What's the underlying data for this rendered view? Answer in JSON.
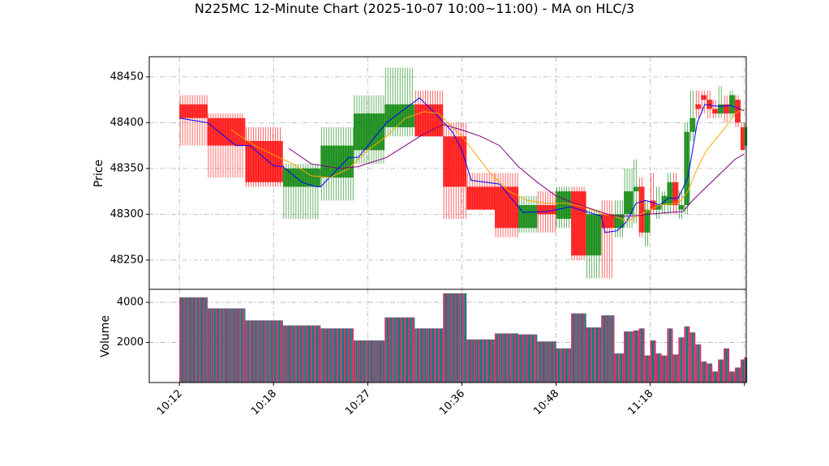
{
  "chart_data": {
    "title": "N225MC 12-Minute Chart (2025-10-07 10:00~11:00) - MA on HLC/3",
    "type": "candlestick",
    "price_panel": {
      "ylabel": "Price",
      "ylim": [
        48218,
        48472
      ],
      "yticks": [
        48250,
        48300,
        48350,
        48400,
        48450
      ],
      "grid": true
    },
    "volume_panel": {
      "ylabel": "Volume",
      "ylim": [
        0,
        4650
      ],
      "yticks": [
        2000,
        4000
      ],
      "grid": true
    },
    "xlim": [
      -3.2,
      60.2
    ],
    "xticks": [
      {
        "pos": 0,
        "label": "10:12"
      },
      {
        "pos": 10,
        "label": "10:18"
      },
      {
        "pos": 20,
        "label": "10:27"
      },
      {
        "pos": 30,
        "label": "10:36"
      },
      {
        "pos": 40,
        "label": "10:48"
      },
      {
        "pos": 50,
        "label": "11:18"
      },
      {
        "pos": 60,
        "label": ""
      }
    ],
    "colors": {
      "up": "#008000",
      "down": "#ff0000",
      "ma_fast": "#0000ff",
      "ma_mid": "#ffa500",
      "ma_slow": "#800080",
      "vol_up": "#008080",
      "vol_down": "#cc3366"
    },
    "candles": [
      {
        "x": 0,
        "w": 3,
        "open": 48420,
        "high": 48430,
        "low": 48375,
        "close": 48405,
        "volume": 4250
      },
      {
        "x": 3,
        "w": 4,
        "open": 48405,
        "high": 48410,
        "low": 48340,
        "close": 48375,
        "volume": 3700
      },
      {
        "x": 7,
        "w": 4,
        "open": 48380,
        "high": 48395,
        "low": 48330,
        "close": 48335,
        "volume": 3100
      },
      {
        "x": 11,
        "w": 4,
        "open": 48330,
        "high": 48355,
        "low": 48295,
        "close": 48350,
        "volume": 2850
      },
      {
        "x": 15,
        "w": 3.5,
        "open": 48340,
        "high": 48395,
        "low": 48315,
        "close": 48375,
        "volume": 2700
      },
      {
        "x": 18.5,
        "w": 3.3,
        "open": 48370,
        "high": 48430,
        "low": 48355,
        "close": 48410,
        "volume": 2100
      },
      {
        "x": 21.8,
        "w": 3.2,
        "open": 48395,
        "high": 48460,
        "low": 48385,
        "close": 48420,
        "volume": 3250
      },
      {
        "x": 25,
        "w": 3,
        "open": 48420,
        "high": 48435,
        "low": 48385,
        "close": 48385,
        "volume": 2700
      },
      {
        "x": 28,
        "w": 2.5,
        "open": 48385,
        "high": 48400,
        "low": 48295,
        "close": 48330,
        "volume": 4450
      },
      {
        "x": 30.5,
        "w": 3,
        "open": 48330,
        "high": 48345,
        "low": 48305,
        "close": 48305,
        "volume": 2150
      },
      {
        "x": 33.5,
        "w": 2.5,
        "open": 48330,
        "high": 48345,
        "low": 48275,
        "close": 48285,
        "volume": 2450
      },
      {
        "x": 36,
        "w": 2,
        "open": 48285,
        "high": 48320,
        "low": 48280,
        "close": 48310,
        "volume": 2400
      },
      {
        "x": 38,
        "w": 2,
        "open": 48310,
        "high": 48325,
        "low": 48280,
        "close": 48300,
        "volume": 2050
      },
      {
        "x": 40,
        "w": 1.6,
        "open": 48295,
        "high": 48330,
        "low": 48285,
        "close": 48325,
        "volume": 1700
      },
      {
        "x": 41.6,
        "w": 1.6,
        "open": 48325,
        "high": 48330,
        "low": 48250,
        "close": 48255,
        "volume": 3450
      },
      {
        "x": 43.2,
        "w": 1.6,
        "open": 48255,
        "high": 48305,
        "low": 48230,
        "close": 48300,
        "volume": 2750
      },
      {
        "x": 44.8,
        "w": 1.4,
        "open": 48300,
        "high": 48315,
        "low": 48230,
        "close": 48285,
        "volume": 3350
      },
      {
        "x": 46.2,
        "w": 1.0,
        "open": 48285,
        "high": 48315,
        "low": 48275,
        "close": 48300,
        "volume": 1450
      },
      {
        "x": 47.2,
        "w": 1.0,
        "open": 48300,
        "high": 48350,
        "low": 48285,
        "close": 48325,
        "volume": 2550
      },
      {
        "x": 48.2,
        "w": 0.6,
        "open": 48325,
        "high": 48360,
        "low": 48290,
        "close": 48330,
        "volume": 2600
      },
      {
        "x": 48.8,
        "w": 0.6,
        "open": 48330,
        "high": 48340,
        "low": 48275,
        "close": 48280,
        "volume": 2700
      },
      {
        "x": 49.4,
        "w": 0.6,
        "open": 48280,
        "high": 48315,
        "low": 48265,
        "close": 48305,
        "volume": 1350
      },
      {
        "x": 50.0,
        "w": 0.6,
        "open": 48315,
        "high": 48345,
        "low": 48300,
        "close": 48305,
        "volume": 2100
      },
      {
        "x": 50.6,
        "w": 0.6,
        "open": 48305,
        "high": 48330,
        "low": 48295,
        "close": 48310,
        "volume": 1450
      },
      {
        "x": 51.2,
        "w": 0.6,
        "open": 48310,
        "high": 48325,
        "low": 48300,
        "close": 48320,
        "volume": 1350
      },
      {
        "x": 51.8,
        "w": 0.6,
        "open": 48310,
        "high": 48345,
        "low": 48300,
        "close": 48335,
        "volume": 2700
      },
      {
        "x": 52.4,
        "w": 0.6,
        "open": 48335,
        "high": 48345,
        "low": 48300,
        "close": 48310,
        "volume": 1400
      },
      {
        "x": 53.0,
        "w": 0.6,
        "open": 48305,
        "high": 48325,
        "low": 48295,
        "close": 48310,
        "volume": 2250
      },
      {
        "x": 53.6,
        "w": 0.6,
        "open": 48310,
        "high": 48400,
        "low": 48300,
        "close": 48390,
        "volume": 2800
      },
      {
        "x": 54.2,
        "w": 0.6,
        "open": 48390,
        "high": 48435,
        "low": 48380,
        "close": 48405,
        "volume": 2500
      },
      {
        "x": 54.8,
        "w": 0.6,
        "open": 48420,
        "high": 48435,
        "low": 48405,
        "close": 48415,
        "volume": 1900
      },
      {
        "x": 55.4,
        "w": 0.6,
        "open": 48430,
        "high": 48435,
        "low": 48410,
        "close": 48425,
        "volume": 1050
      },
      {
        "x": 56.0,
        "w": 0.6,
        "open": 48425,
        "high": 48435,
        "low": 48405,
        "close": 48415,
        "volume": 950
      },
      {
        "x": 56.6,
        "w": 0.6,
        "open": 48415,
        "high": 48425,
        "low": 48405,
        "close": 48410,
        "volume": 550
      },
      {
        "x": 57.2,
        "w": 0.6,
        "open": 48410,
        "high": 48440,
        "low": 48405,
        "close": 48420,
        "volume": 1150
      },
      {
        "x": 57.8,
        "w": 0.6,
        "open": 48420,
        "high": 48430,
        "low": 48400,
        "close": 48410,
        "volume": 1700
      },
      {
        "x": 58.4,
        "w": 0.6,
        "open": 48410,
        "high": 48435,
        "low": 48405,
        "close": 48430,
        "volume": 550
      },
      {
        "x": 59.0,
        "w": 0.6,
        "open": 48425,
        "high": 48430,
        "low": 48395,
        "close": 48400,
        "volume": 750
      },
      {
        "x": 59.6,
        "w": 0.4,
        "open": 48395,
        "high": 48400,
        "low": 48370,
        "close": 48370,
        "volume": 1150
      },
      {
        "x": 60.0,
        "w": 0.3,
        "open": 48375,
        "high": 48400,
        "low": 48370,
        "close": 48395,
        "volume": 1250
      }
    ],
    "ma_fast": [
      [
        0,
        48405
      ],
      [
        3,
        48400
      ],
      [
        6,
        48375
      ],
      [
        7.5,
        48375
      ],
      [
        10,
        48353
      ],
      [
        11,
        48352
      ],
      [
        13,
        48335
      ],
      [
        14.5,
        48330
      ],
      [
        15,
        48330
      ],
      [
        18,
        48362
      ],
      [
        19,
        48362
      ],
      [
        22,
        48400
      ],
      [
        25.5,
        48427
      ],
      [
        27,
        48412
      ],
      [
        29,
        48390
      ],
      [
        30,
        48370
      ],
      [
        31,
        48337
      ],
      [
        34,
        48333
      ],
      [
        36.5,
        48302
      ],
      [
        39,
        48303
      ],
      [
        40,
        48305
      ],
      [
        41.5,
        48308
      ],
      [
        44.8,
        48298
      ],
      [
        45.2,
        48280
      ],
      [
        46.5,
        48282
      ],
      [
        47.5,
        48292
      ],
      [
        48.5,
        48312
      ],
      [
        49.5,
        48315
      ],
      [
        50.5,
        48312
      ],
      [
        51,
        48310
      ],
      [
        52,
        48318
      ],
      [
        52.5,
        48317
      ],
      [
        53,
        48318
      ],
      [
        54,
        48340
      ],
      [
        55,
        48400
      ],
      [
        55.8,
        48420
      ],
      [
        57,
        48418
      ],
      [
        58,
        48418
      ],
      [
        58.5,
        48419
      ],
      [
        60,
        48413
      ]
    ],
    "ma_mid": [
      [
        5.5,
        48392
      ],
      [
        8,
        48375
      ],
      [
        10,
        48365
      ],
      [
        12,
        48355
      ],
      [
        14,
        48342
      ],
      [
        16,
        48340
      ],
      [
        18,
        48350
      ],
      [
        20,
        48370
      ],
      [
        22,
        48385
      ],
      [
        24,
        48405
      ],
      [
        26,
        48412
      ],
      [
        27.5,
        48410
      ],
      [
        29,
        48395
      ],
      [
        30,
        48385
      ],
      [
        31,
        48372
      ],
      [
        33,
        48345
      ],
      [
        35,
        48325
      ],
      [
        37,
        48315
      ],
      [
        39,
        48312
      ],
      [
        41,
        48312
      ],
      [
        43,
        48308
      ],
      [
        45,
        48300
      ],
      [
        46.5,
        48297
      ],
      [
        47.5,
        48292
      ],
      [
        49,
        48300
      ],
      [
        51,
        48310
      ],
      [
        53,
        48312
      ],
      [
        54,
        48325
      ],
      [
        55,
        48350
      ],
      [
        56,
        48370
      ],
      [
        58,
        48395
      ],
      [
        59,
        48410
      ],
      [
        60,
        48415
      ]
    ],
    "ma_slow": [
      [
        11.6,
        48372
      ],
      [
        14,
        48355
      ],
      [
        17,
        48350
      ],
      [
        19,
        48352
      ],
      [
        22,
        48362
      ],
      [
        24,
        48375
      ],
      [
        26,
        48388
      ],
      [
        28,
        48398
      ],
      [
        30,
        48392
      ],
      [
        32,
        48385
      ],
      [
        34,
        48375
      ],
      [
        36,
        48352
      ],
      [
        38,
        48335
      ],
      [
        40,
        48320
      ],
      [
        42,
        48312
      ],
      [
        44,
        48305
      ],
      [
        46,
        48298
      ],
      [
        48,
        48298
      ],
      [
        50,
        48300
      ],
      [
        52,
        48302
      ],
      [
        53.5,
        48303
      ],
      [
        54.5,
        48315
      ],
      [
        56,
        48330
      ],
      [
        58,
        48350
      ],
      [
        59,
        48360
      ],
      [
        60,
        48366
      ]
    ]
  }
}
